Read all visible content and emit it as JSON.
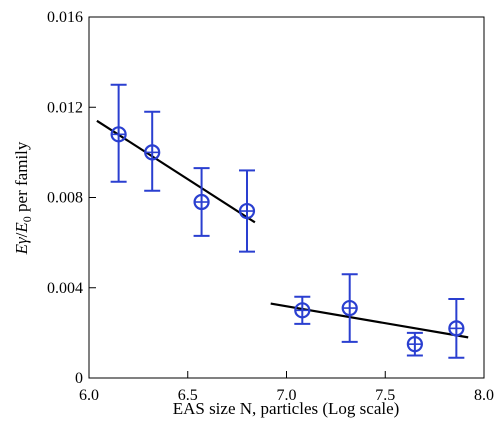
{
  "chart_data": {
    "type": "scatter",
    "xlabel": "EAS size N, particles (Log scale)",
    "ylabel_parts": {
      "e1": "E",
      "gamma": "γ",
      "slash": "/",
      "e2": "E",
      "sub": "0",
      "rest": " per family"
    },
    "xlim": [
      6.0,
      8.0
    ],
    "ylim": [
      0,
      0.016
    ],
    "xticks": [
      6.0,
      6.5,
      7.0,
      7.5,
      8.0
    ],
    "xtick_labels": [
      "6.0",
      "6.5",
      "7.0",
      "7.5",
      "8.0"
    ],
    "yticks": [
      0,
      0.004,
      0.008,
      0.012,
      0.016
    ],
    "ytick_labels": [
      "0",
      "0.004",
      "0.008",
      "0.012",
      "0.016"
    ],
    "grid": false,
    "colors": {
      "points": "#2a3fd0",
      "fit": "#000000"
    },
    "points": [
      {
        "x": 6.15,
        "y": 0.0108,
        "ylow": 0.0087,
        "yhigh": 0.013
      },
      {
        "x": 6.32,
        "y": 0.01,
        "ylow": 0.0083,
        "yhigh": 0.0118
      },
      {
        "x": 6.57,
        "y": 0.0078,
        "ylow": 0.0063,
        "yhigh": 0.0093
      },
      {
        "x": 6.8,
        "y": 0.0074,
        "ylow": 0.0056,
        "yhigh": 0.0092
      },
      {
        "x": 7.08,
        "y": 0.003,
        "ylow": 0.0024,
        "yhigh": 0.0036
      },
      {
        "x": 7.32,
        "y": 0.0031,
        "ylow": 0.0016,
        "yhigh": 0.0046
      },
      {
        "x": 7.65,
        "y": 0.0015,
        "ylow": 0.001,
        "yhigh": 0.002
      },
      {
        "x": 7.86,
        "y": 0.0022,
        "ylow": 0.0009,
        "yhigh": 0.0035
      }
    ],
    "fit_lines": [
      {
        "x": [
          6.04,
          6.84
        ],
        "y": [
          0.0114,
          0.0069
        ]
      },
      {
        "x": [
          6.92,
          7.92
        ],
        "y": [
          0.0033,
          0.0018
        ]
      }
    ]
  }
}
